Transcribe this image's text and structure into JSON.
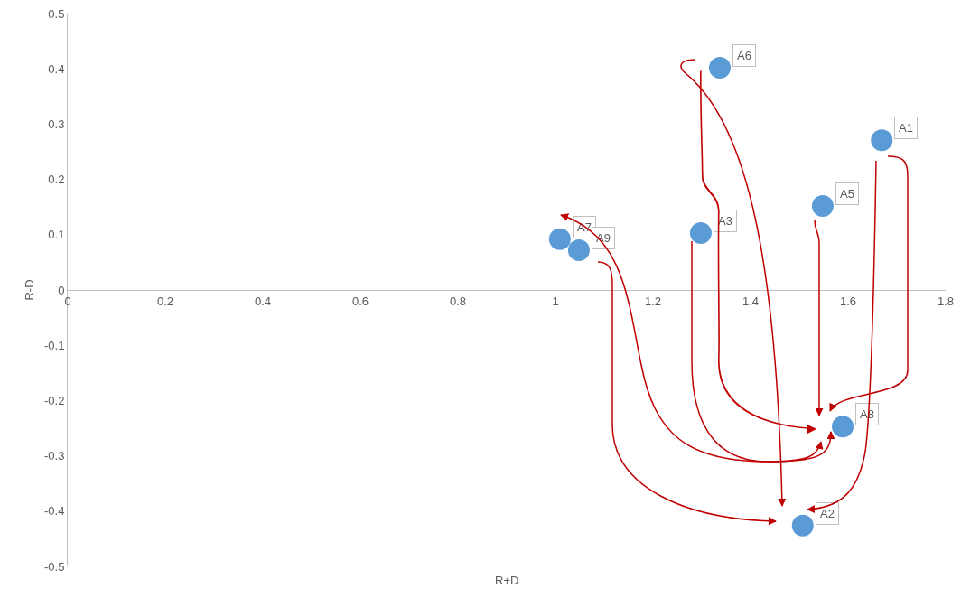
{
  "chart_data": {
    "type": "scatter",
    "xlabel": "R+D",
    "ylabel": "R-D",
    "x": [
      1.669,
      1.507,
      1.298,
      1.548,
      1.337,
      1.009,
      1.589,
      1.048
    ],
    "series": [
      {
        "color": "#5b9bd5",
        "values": [
          0.271,
          -0.426,
          0.103,
          0.152,
          0.402,
          0.092,
          -0.247,
          0.072
        ]
      }
    ],
    "annotations": [
      {
        "text": "A1",
        "x": 1.669,
        "y": 0.271
      },
      {
        "text": "A2",
        "x": 1.507,
        "y": -0.426
      },
      {
        "text": "A3",
        "x": 1.298,
        "y": 0.103
      },
      {
        "text": "A5",
        "x": 1.548,
        "y": 0.152
      },
      {
        "text": "A6",
        "x": 1.337,
        "y": 0.402
      },
      {
        "text": "A7",
        "x": 1.009,
        "y": 0.092
      },
      {
        "text": "A8",
        "x": 1.589,
        "y": -0.247
      },
      {
        "text": "A9",
        "x": 1.048,
        "y": 0.072
      }
    ],
    "xlim": [
      0,
      1.8
    ],
    "xticks": [
      0,
      0.2,
      0.4,
      0.6,
      0.8,
      1,
      1.2,
      1.4,
      1.6,
      1.8
    ],
    "ylim": [
      -0.5,
      0.5
    ],
    "yticks": [
      -0.5,
      -0.4,
      -0.3,
      -0.2,
      -0.1,
      0,
      0.1,
      0.2,
      0.3,
      0.4,
      0.5
    ],
    "grid": false,
    "legend": false,
    "marker": "circle"
  }
}
